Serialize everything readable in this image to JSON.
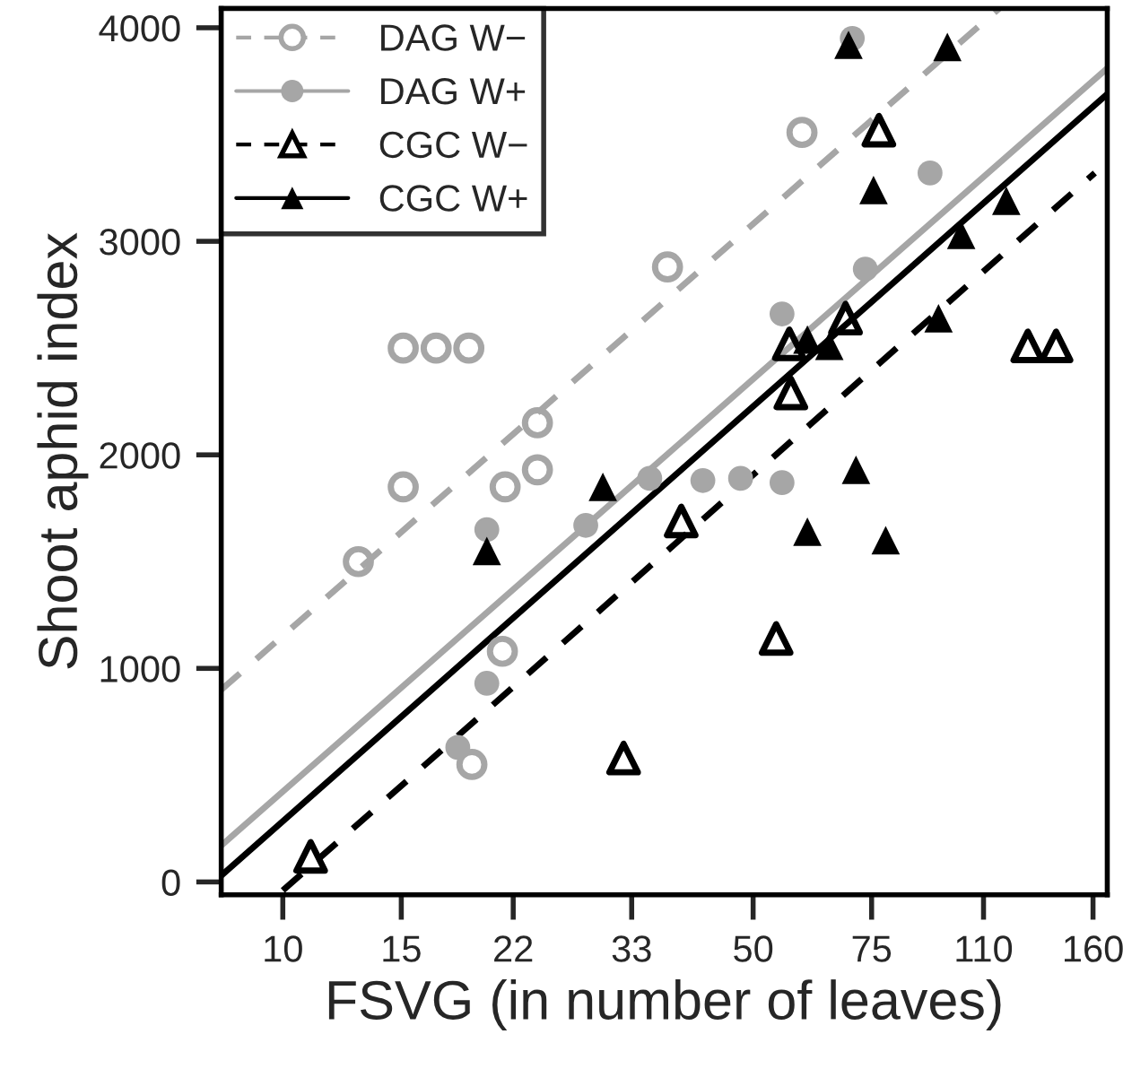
{
  "chart_data": {
    "type": "scatter",
    "xlabel": "FSVG (in number of leaves)",
    "ylabel": "Shoot aphid index",
    "log": "x",
    "xlim": [
      8.1,
      168
    ],
    "ylim": [
      -60,
      4090
    ],
    "xticks": [
      10,
      15,
      22,
      33,
      50,
      75,
      110,
      160
    ],
    "yticks": [
      0,
      1000,
      2000,
      3000,
      4000
    ],
    "grid": false,
    "legend": "top left",
    "series": [
      {
        "name": "DAG W−",
        "color": "#a6a6a6",
        "marker": "circle-open",
        "line_style": "dashed",
        "x": [
          12.95,
          15.1,
          15.1,
          16.9,
          18.9,
          23.9,
          21.4,
          23.9,
          21.2,
          19.1,
          37.3,
          59.1
        ],
        "values": [
          1500,
          1850,
          2500,
          2500,
          2500,
          2150,
          1850,
          1930,
          1080,
          550,
          2880,
          3510
        ]
      },
      {
        "name": "DAG W+",
        "color": "#a6a6a6",
        "marker": "circle",
        "line_style": "solid",
        "x": [
          70.2,
          91.6,
          73.4,
          55.2,
          42.1,
          47.9,
          55.2,
          35.1,
          20.1,
          28.2,
          20.1,
          18.2
        ],
        "values": [
          3950,
          3320,
          2870,
          2660,
          1880,
          1890,
          1870,
          1890,
          1650,
          1670,
          930,
          630
        ]
      },
      {
        "name": "CGC W−",
        "color": "#000000",
        "marker": "triangle-open",
        "line_style": "dashed",
        "x": [
          11.0,
          32.1,
          39.1,
          54.1,
          56.9,
          56.6,
          68.6,
          76.9,
          128,
          141
        ],
        "values": [
          120,
          580,
          1690,
          1140,
          2290,
          2520,
          2640,
          3520,
          2510,
          2510
        ]
      },
      {
        "name": "CGC W+",
        "color": "#000000",
        "marker": "triangle",
        "line_style": "solid",
        "x": [
          69.3,
          97.2,
          75.5,
          118.9,
          101.9,
          94.3,
          60.2,
          64.9,
          71.1,
          60.2,
          78.7,
          20.1,
          29.9
        ],
        "values": [
          3920,
          3910,
          3240,
          3190,
          3030,
          2640,
          2540,
          2510,
          1930,
          1640,
          1600,
          1550,
          1850
        ]
      },
      {
        "type": "line",
        "color": "#a6a6a6",
        "line_style": "dashed",
        "x": [
          8.1,
          116
        ],
        "values": [
          900,
          4090
        ]
      },
      {
        "type": "line",
        "color": "#a6a6a6",
        "line_style": "solid",
        "x": [
          8.1,
          168
        ],
        "values": [
          170,
          3810
        ]
      },
      {
        "type": "line",
        "color": "#000000",
        "line_style": "dashed",
        "x": [
          10,
          161
        ],
        "values": [
          -40,
          3320
        ]
      },
      {
        "type": "line",
        "color": "#000000",
        "line_style": "solid",
        "x": [
          8.1,
          168
        ],
        "values": [
          30,
          3690
        ]
      }
    ]
  }
}
